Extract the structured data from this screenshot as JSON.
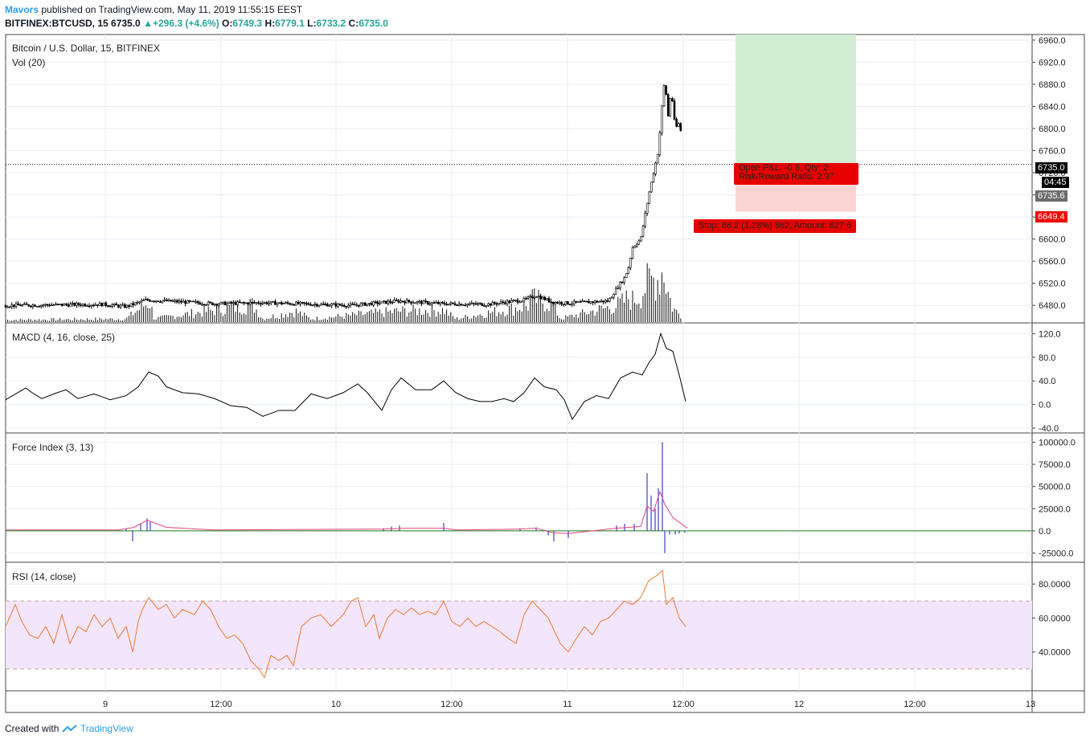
{
  "header": {
    "author": "Mavors",
    "published": "published on TradingView.com, May 11, 2019 11:55:15 EEST",
    "symbol_line": "BITFINEX:BTCUSD, 15",
    "last": "6735.0",
    "change": "+296.3 (+4.6%)",
    "open_label": "O:",
    "open": "6749.3",
    "high_label": "H:",
    "high": "6779.1",
    "low_label": "L:",
    "low": "6733.2",
    "close_label": "C:",
    "close": "6735.0"
  },
  "panes": {
    "main_title": "Bitcoin / U.S. Dollar, 15, BITFINEX",
    "vol_label": "Vol (20)",
    "macd_label": "MACD (4, 16, close, 25)",
    "force_label": "Force Index (3, 13)",
    "rsi_label": "RSI (14, close)"
  },
  "position_tool": {
    "open_pl": "Open P&L: -0.6, Qty: 2",
    "risk_reward": "Risk/Reward Ratio: 2.97",
    "stop": "Stop: 86.2 (1.28%) 862, Amount: 827.6",
    "tp_color": "#d1eed5",
    "sl_color": "#fcd4d4"
  },
  "price_tags": {
    "last": "6735.0",
    "countdown": "04:45",
    "entry": "6735.6",
    "stop": "6649.4"
  },
  "footer": {
    "created": "Created with",
    "brand": "TradingView"
  },
  "chart_data": [
    {
      "type": "candlestick",
      "title": "Bitcoin / U.S. Dollar, 15, BITFINEX",
      "ylim": [
        6460,
        6970
      ],
      "yticks": [
        "6960.0",
        "6920.0",
        "6880.0",
        "6840.0",
        "6800.0",
        "6760.0",
        "6720.0",
        "6680.0",
        "6640.0",
        "6600.0",
        "6560.0",
        "6520.0",
        "6480.0"
      ],
      "x_ticks": [
        "9",
        "12:00",
        "10",
        "12:00",
        "11",
        "12:00",
        "12",
        "12:00",
        "13"
      ],
      "price_path": [
        [
          0,
          6480
        ],
        [
          120,
          6482
        ],
        [
          150,
          6478
        ],
        [
          175,
          6490
        ],
        [
          260,
          6483
        ],
        [
          320,
          6485
        ],
        [
          430,
          6480
        ],
        [
          490,
          6488
        ],
        [
          545,
          6483
        ],
        [
          600,
          6482
        ],
        [
          645,
          6490
        ],
        [
          660,
          6498
        ],
        [
          680,
          6486
        ],
        [
          700,
          6484
        ],
        [
          750,
          6488
        ],
        [
          762,
          6515
        ],
        [
          770,
          6530
        ],
        [
          775,
          6550
        ],
        [
          780,
          6585
        ],
        [
          790,
          6600
        ],
        [
          795,
          6640
        ],
        [
          800,
          6680
        ],
        [
          806,
          6720
        ],
        [
          812,
          6760
        ],
        [
          817,
          6850
        ],
        [
          820,
          6890
        ],
        [
          824,
          6820
        ],
        [
          828,
          6870
        ],
        [
          833,
          6800
        ],
        [
          838,
          6810
        ],
        [
          842,
          6780
        ],
        [
          846,
          6760
        ],
        [
          848,
          6735
        ]
      ],
      "volume_path": [
        [
          0,
          4
        ],
        [
          150,
          6
        ],
        [
          179,
          38
        ],
        [
          185,
          6
        ],
        [
          308,
          32
        ],
        [
          320,
          6
        ],
        [
          360,
          20
        ],
        [
          380,
          6
        ],
        [
          490,
          20
        ],
        [
          545,
          22
        ],
        [
          560,
          6
        ],
        [
          650,
          30
        ],
        [
          655,
          42
        ],
        [
          680,
          34
        ],
        [
          690,
          6
        ],
        [
          760,
          30
        ],
        [
          770,
          38
        ],
        [
          775,
          45
        ],
        [
          780,
          40
        ],
        [
          790,
          50
        ],
        [
          798,
          70
        ],
        [
          806,
          78
        ],
        [
          814,
          82
        ],
        [
          818,
          100
        ],
        [
          824,
          55
        ],
        [
          830,
          25
        ],
        [
          840,
          12
        ],
        [
          848,
          8
        ]
      ],
      "last_price": 6735.0
    },
    {
      "type": "line",
      "title": "MACD (4, 16, close, 25)",
      "ylim": [
        -40,
        130
      ],
      "yticks": [
        "120.0",
        "80.0",
        "40.0",
        "0.0",
        "-40.0"
      ],
      "series": [
        {
          "values": [
            [
              0,
              8
            ],
            [
              15,
              20
            ],
            [
              25,
              28
            ],
            [
              35,
              18
            ],
            [
              45,
              10
            ],
            [
              60,
              18
            ],
            [
              75,
              25
            ],
            [
              90,
              10
            ],
            [
              110,
              18
            ],
            [
              130,
              8
            ],
            [
              150,
              15
            ],
            [
              165,
              30
            ],
            [
              178,
              55
            ],
            [
              190,
              48
            ],
            [
              200,
              30
            ],
            [
              220,
              20
            ],
            [
              240,
              18
            ],
            [
              260,
              10
            ],
            [
              280,
              -2
            ],
            [
              300,
              -5
            ],
            [
              320,
              -20
            ],
            [
              340,
              -10
            ],
            [
              360,
              -10
            ],
            [
              380,
              18
            ],
            [
              400,
              10
            ],
            [
              420,
              20
            ],
            [
              438,
              35
            ],
            [
              450,
              20
            ],
            [
              468,
              -10
            ],
            [
              480,
              25
            ],
            [
              492,
              45
            ],
            [
              510,
              25
            ],
            [
              530,
              25
            ],
            [
              545,
              40
            ],
            [
              560,
              20
            ],
            [
              575,
              10
            ],
            [
              590,
              5
            ],
            [
              605,
              5
            ],
            [
              620,
              10
            ],
            [
              632,
              5
            ],
            [
              645,
              20
            ],
            [
              658,
              45
            ],
            [
              670,
              30
            ],
            [
              685,
              25
            ],
            [
              695,
              8
            ],
            [
              705,
              -25
            ],
            [
              720,
              5
            ],
            [
              735,
              15
            ],
            [
              750,
              10
            ],
            [
              765,
              45
            ],
            [
              780,
              55
            ],
            [
              792,
              50
            ],
            [
              800,
              70
            ],
            [
              808,
              85
            ],
            [
              815,
              120
            ],
            [
              822,
              95
            ],
            [
              830,
              90
            ],
            [
              838,
              50
            ],
            [
              846,
              5
            ]
          ]
        }
      ]
    },
    {
      "type": "bar",
      "title": "Force Index (3, 13)",
      "ylim": [
        -30000,
        105000
      ],
      "yticks": [
        "100000.0",
        "75000.0",
        "50000.0",
        "25000.0",
        "0.0",
        "-25000.0"
      ],
      "series": [
        {
          "values": [
            [
              150,
              3000
            ],
            [
              158,
              -12000
            ],
            [
              168,
              8000
            ],
            [
              176,
              14000
            ],
            [
              180,
              10000
            ],
            [
              470,
              3000
            ],
            [
              480,
              5000
            ],
            [
              490,
              6000
            ],
            [
              545,
              9000
            ],
            [
              640,
              3000
            ],
            [
              660,
              4000
            ],
            [
              675,
              -5000
            ],
            [
              682,
              -12000
            ],
            [
              700,
              -8000
            ],
            [
              760,
              6000
            ],
            [
              770,
              8000
            ],
            [
              782,
              8000
            ],
            [
              798,
              65000
            ],
            [
              803,
              40000
            ],
            [
              808,
              25000
            ],
            [
              812,
              48000
            ],
            [
              817,
              100000
            ],
            [
              820,
              -25000
            ],
            [
              826,
              -4000
            ],
            [
              833,
              -4000
            ],
            [
              838,
              -3000
            ],
            [
              845,
              -2000
            ]
          ]
        },
        {
          "values": [
            [
              0,
              1000
            ],
            [
              140,
              1000
            ],
            [
              160,
              4000
            ],
            [
              176,
              12000
            ],
            [
              200,
              4000
            ],
            [
              260,
              1000
            ],
            [
              470,
              2000
            ],
            [
              500,
              3000
            ],
            [
              545,
              3000
            ],
            [
              560,
              1000
            ],
            [
              640,
              2000
            ],
            [
              660,
              3000
            ],
            [
              680,
              -2000
            ],
            [
              700,
              -3000
            ],
            [
              760,
              3000
            ],
            [
              790,
              5000
            ],
            [
              798,
              28000
            ],
            [
              806,
              22000
            ],
            [
              814,
              44000
            ],
            [
              820,
              30000
            ],
            [
              830,
              15000
            ],
            [
              848,
              3000
            ]
          ]
        }
      ]
    },
    {
      "type": "line",
      "title": "RSI (14, close)",
      "ylim": [
        20,
        90
      ],
      "yticks": [
        "80.0000",
        "60.0000",
        "40.0000"
      ],
      "bands": [
        30,
        70
      ],
      "series": [
        {
          "values": [
            [
              0,
              55
            ],
            [
              12,
              68
            ],
            [
              20,
              58
            ],
            [
              30,
              50
            ],
            [
              40,
              48
            ],
            [
              50,
              55
            ],
            [
              60,
              45
            ],
            [
              70,
              62
            ],
            [
              80,
              45
            ],
            [
              90,
              55
            ],
            [
              100,
              52
            ],
            [
              110,
              62
            ],
            [
              120,
              55
            ],
            [
              130,
              60
            ],
            [
              140,
              48
            ],
            [
              150,
              55
            ],
            [
              158,
              40
            ],
            [
              165,
              58
            ],
            [
              170,
              65
            ],
            [
              178,
              72
            ],
            [
              190,
              65
            ],
            [
              200,
              68
            ],
            [
              210,
              60
            ],
            [
              220,
              65
            ],
            [
              235,
              62
            ],
            [
              245,
              70
            ],
            [
              255,
              65
            ],
            [
              265,
              55
            ],
            [
              275,
              48
            ],
            [
              285,
              50
            ],
            [
              295,
              45
            ],
            [
              305,
              35
            ],
            [
              315,
              30
            ],
            [
              322,
              25
            ],
            [
              330,
              38
            ],
            [
              340,
              35
            ],
            [
              350,
              38
            ],
            [
              358,
              32
            ],
            [
              368,
              55
            ],
            [
              380,
              60
            ],
            [
              392,
              62
            ],
            [
              405,
              55
            ],
            [
              420,
              62
            ],
            [
              430,
              70
            ],
            [
              438,
              72
            ],
            [
              448,
              55
            ],
            [
              458,
              62
            ],
            [
              465,
              48
            ],
            [
              475,
              60
            ],
            [
              485,
              65
            ],
            [
              495,
              62
            ],
            [
              505,
              66
            ],
            [
              515,
              62
            ],
            [
              525,
              64
            ],
            [
              535,
              62
            ],
            [
              545,
              70
            ],
            [
              555,
              58
            ],
            [
              565,
              55
            ],
            [
              575,
              60
            ],
            [
              585,
              55
            ],
            [
              595,
              58
            ],
            [
              605,
              55
            ],
            [
              615,
              52
            ],
            [
              625,
              48
            ],
            [
              635,
              45
            ],
            [
              645,
              62
            ],
            [
              655,
              70
            ],
            [
              665,
              65
            ],
            [
              675,
              60
            ],
            [
              690,
              45
            ],
            [
              700,
              40
            ],
            [
              710,
              48
            ],
            [
              720,
              55
            ],
            [
              730,
              50
            ],
            [
              740,
              58
            ],
            [
              750,
              60
            ],
            [
              760,
              65
            ],
            [
              770,
              70
            ],
            [
              780,
              68
            ],
            [
              790,
              72
            ],
            [
              800,
              82
            ],
            [
              810,
              85
            ],
            [
              817,
              88
            ],
            [
              822,
              68
            ],
            [
              830,
              72
            ],
            [
              838,
              60
            ],
            [
              846,
              55
            ]
          ]
        }
      ]
    }
  ]
}
